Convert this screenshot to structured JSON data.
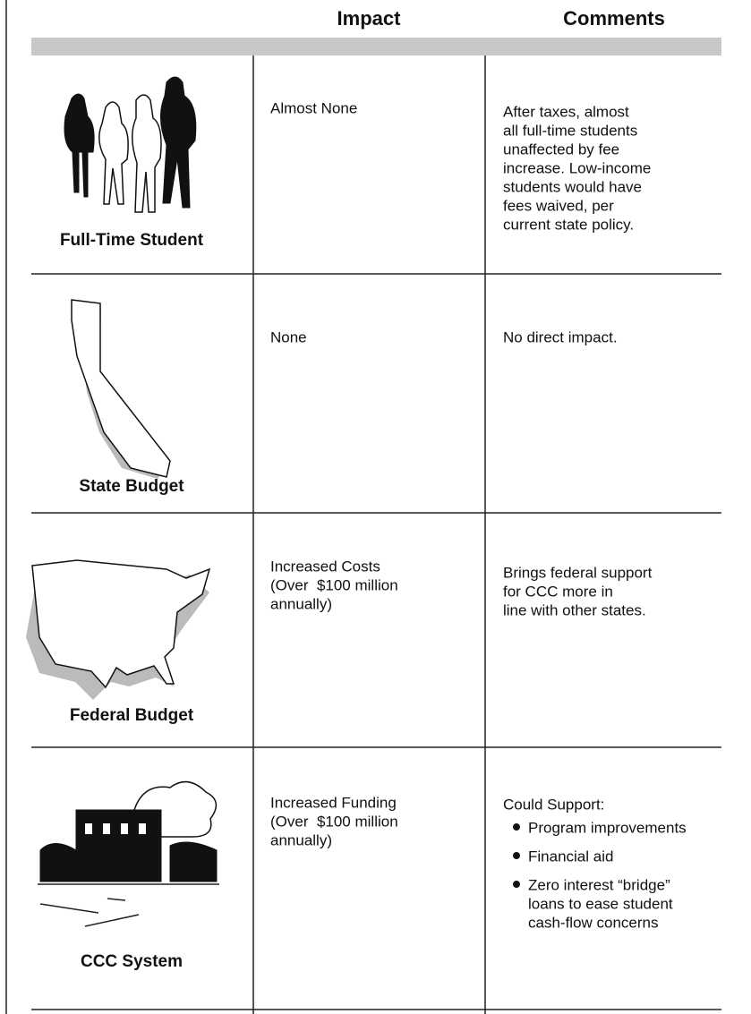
{
  "header": {
    "columns": [
      "Impact",
      "Comments"
    ]
  },
  "rows": [
    {
      "label": "Full-Time Student",
      "impact": [
        "Almost None"
      ],
      "comments": [
        "After taxes, almost",
        "all full-time students",
        "unaffected by fee",
        "increase. Low-income",
        "students would have",
        "fees waived, per",
        "current state policy."
      ]
    },
    {
      "label": "State Budget",
      "impact": [
        "None"
      ],
      "comments": [
        "No direct impact."
      ]
    },
    {
      "label": "Federal Budget",
      "impact": [
        "Increased Costs",
        "(Over  $100 million",
        "annually)"
      ],
      "comments": [
        "Brings federal support",
        "for CCC more in",
        "line with other states."
      ]
    },
    {
      "label": "CCC System",
      "impact": [
        "Increased Funding",
        "(Over  $100 million",
        "annually)"
      ],
      "comments": [
        "Could Support:"
      ],
      "bullets": [
        [
          "Program improvements"
        ],
        [
          "Financial aid"
        ],
        [
          "Zero interest “bridge”",
          "loans to ease student",
          "cash-flow concerns"
        ]
      ]
    }
  ]
}
